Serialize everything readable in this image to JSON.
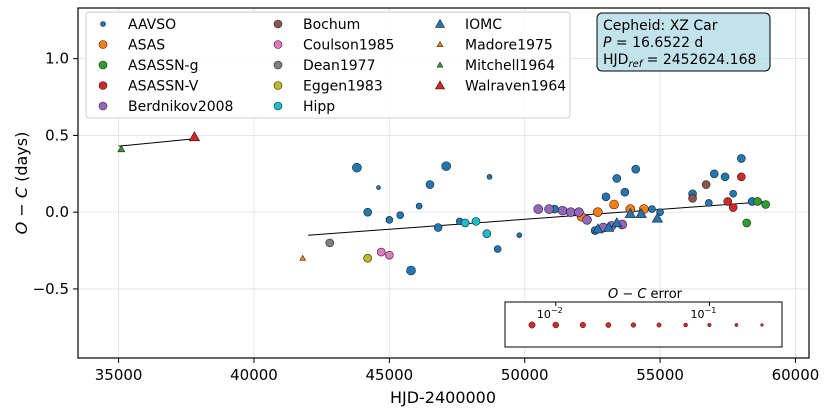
{
  "chart_data": {
    "type": "scatter",
    "xlabel": "HJD-2400000",
    "ylabel_italic": "O − C",
    "ylabel_rest": " (days)",
    "xlim": [
      33500,
      60500
    ],
    "ylim": [
      -0.95,
      1.33
    ],
    "xticks": [
      35000,
      40000,
      45000,
      50000,
      55000,
      60000
    ],
    "yticks": [
      -0.5,
      0.0,
      0.5,
      1.0
    ],
    "ytick_labels": [
      "−0.5",
      "0.0",
      "0.5",
      "1.0"
    ],
    "grid": true,
    "info_box": {
      "line1": "Cepheid: XZ Car",
      "p_label": "P",
      "p_value": " = 16.6522 d",
      "hjd_label": "HJD",
      "hjd_sub": "ref",
      "hjd_value": " = 2452624.168"
    },
    "legend": {
      "columns": [
        [
          {
            "name": "AAVSO",
            "color": "#1f77b4",
            "marker": "circle-small"
          },
          {
            "name": "ASAS",
            "color": "#ff7f0e",
            "marker": "circle"
          },
          {
            "name": "ASASSN-g",
            "color": "#2ca02c",
            "marker": "circle"
          },
          {
            "name": "ASASSN-V",
            "color": "#d62728",
            "marker": "circle"
          },
          {
            "name": "Berdnikov2008",
            "color": "#9467bd",
            "marker": "circle"
          }
        ],
        [
          {
            "name": "Bochum",
            "color": "#8c564b",
            "marker": "circle"
          },
          {
            "name": "Coulson1985",
            "color": "#e377c2",
            "marker": "circle"
          },
          {
            "name": "Dean1977",
            "color": "#7f7f7f",
            "marker": "circle"
          },
          {
            "name": "Eggen1983",
            "color": "#bcbd22",
            "marker": "circle"
          },
          {
            "name": "Hipp",
            "color": "#17becf",
            "marker": "circle"
          }
        ],
        [
          {
            "name": "IOMC",
            "color": "#1f77b4",
            "marker": "triangle"
          },
          {
            "name": "Madore1975",
            "color": "#ff7f0e",
            "marker": "triangle-small"
          },
          {
            "name": "Mitchell1964",
            "color": "#2ca02c",
            "marker": "triangle-small"
          },
          {
            "name": "Walraven1964",
            "color": "#d62728",
            "marker": "triangle"
          }
        ]
      ]
    },
    "error_legend": {
      "title_italic": "O − C",
      "title_rest": " error",
      "tick_base": "10",
      "tick_exps": [
        "−2",
        "−1"
      ],
      "tick_values": [
        0.01,
        0.1
      ],
      "sample_errors": [
        0.007,
        0.01,
        0.015,
        0.022,
        0.032,
        0.047,
        0.07,
        0.1,
        0.15,
        0.22
      ],
      "color": "#d62728"
    },
    "fit_lines": [
      {
        "x": [
          35000,
          37900
        ],
        "y": [
          0.43,
          0.48
        ]
      },
      {
        "x": [
          42000,
          59000
        ],
        "y": [
          -0.15,
          0.07
        ]
      }
    ],
    "series": [
      {
        "name": "AAVSO",
        "color": "#1f77b4",
        "marker": "circle",
        "points": [
          [
            43800,
            0.29,
            4.5
          ],
          [
            44200,
            0.0,
            4
          ],
          [
            44600,
            0.16,
            2
          ],
          [
            45000,
            -0.05,
            3.5
          ],
          [
            45400,
            -0.02,
            3.5
          ],
          [
            45800,
            -0.38,
            4.5
          ],
          [
            46100,
            0.04,
            3
          ],
          [
            46500,
            0.18,
            4
          ],
          [
            46800,
            -0.1,
            4
          ],
          [
            47100,
            0.3,
            4.5
          ],
          [
            47600,
            -0.06,
            3.5
          ],
          [
            48700,
            0.23,
            2.5
          ],
          [
            49000,
            -0.24,
            3.5
          ],
          [
            49800,
            -0.15,
            2.5
          ],
          [
            51100,
            0.02,
            4
          ],
          [
            52600,
            -0.12,
            4
          ],
          [
            53000,
            0.1,
            4
          ],
          [
            53400,
            0.22,
            4
          ],
          [
            53700,
            0.13,
            4
          ],
          [
            54100,
            0.28,
            4
          ],
          [
            54700,
            0.02,
            3.5
          ],
          [
            55000,
            0.0,
            3.5
          ],
          [
            56200,
            0.12,
            4
          ],
          [
            56800,
            0.06,
            3.5
          ],
          [
            57000,
            0.25,
            4
          ],
          [
            57400,
            0.23,
            4
          ],
          [
            57700,
            0.12,
            3.5
          ],
          [
            58000,
            0.35,
            4
          ],
          [
            58400,
            0.07,
            4
          ]
        ]
      },
      {
        "name": "ASAS",
        "color": "#ff7f0e",
        "marker": "circle",
        "points": [
          [
            52100,
            -0.03,
            4.5
          ],
          [
            52700,
            0.0,
            4.5
          ],
          [
            53300,
            0.05,
            4.5
          ],
          [
            53900,
            0.02,
            4.5
          ],
          [
            54400,
            0.02,
            4.5
          ]
        ]
      },
      {
        "name": "ASASSN-g",
        "color": "#2ca02c",
        "marker": "circle",
        "points": [
          [
            58200,
            -0.07,
            4
          ],
          [
            58600,
            0.07,
            4
          ],
          [
            58900,
            0.05,
            4
          ]
        ]
      },
      {
        "name": "ASASSN-V",
        "color": "#d62728",
        "marker": "circle",
        "points": [
          [
            57500,
            0.07,
            4
          ],
          [
            57700,
            0.03,
            4
          ],
          [
            58000,
            0.23,
            4
          ]
        ]
      },
      {
        "name": "Berdnikov2008",
        "color": "#9467bd",
        "marker": "circle",
        "points": [
          [
            50500,
            0.02,
            4.5
          ],
          [
            50900,
            0.02,
            4.5
          ],
          [
            51400,
            0.01,
            4.5
          ],
          [
            51700,
            0.0,
            4.5
          ],
          [
            52000,
            0.0,
            4.5
          ],
          [
            52300,
            -0.05,
            4.5
          ],
          [
            52900,
            -0.1,
            4.5
          ],
          [
            53200,
            -0.09,
            4.5
          ],
          [
            53600,
            -0.08,
            4.5
          ]
        ]
      },
      {
        "name": "Bochum",
        "color": "#8c564b",
        "marker": "circle",
        "points": [
          [
            56200,
            0.09,
            4
          ],
          [
            56700,
            0.18,
            4
          ]
        ]
      },
      {
        "name": "Coulson1985",
        "color": "#e377c2",
        "marker": "circle",
        "points": [
          [
            44700,
            -0.26,
            4
          ],
          [
            45000,
            -0.28,
            4
          ]
        ]
      },
      {
        "name": "Dean1977",
        "color": "#7f7f7f",
        "marker": "circle",
        "points": [
          [
            42800,
            -0.2,
            4
          ]
        ]
      },
      {
        "name": "Eggen1983",
        "color": "#bcbd22",
        "marker": "circle",
        "points": [
          [
            44200,
            -0.3,
            4
          ]
        ]
      },
      {
        "name": "Hipp",
        "color": "#17becf",
        "marker": "circle",
        "points": [
          [
            47800,
            -0.07,
            4
          ],
          [
            48200,
            -0.06,
            4
          ],
          [
            48600,
            -0.14,
            4
          ]
        ]
      },
      {
        "name": "IOMC",
        "color": "#1f77b4",
        "marker": "triangle",
        "points": [
          [
            52700,
            -0.11,
            4.5
          ],
          [
            53100,
            -0.1,
            4.5
          ],
          [
            53400,
            -0.07,
            4.5
          ],
          [
            53900,
            -0.01,
            4.5
          ],
          [
            54300,
            -0.01,
            4.5
          ],
          [
            54900,
            -0.04,
            4.5
          ]
        ]
      },
      {
        "name": "Madore1975",
        "color": "#ff7f0e",
        "marker": "triangle",
        "points": [
          [
            41800,
            -0.3,
            2.5
          ]
        ]
      },
      {
        "name": "Mitchell1964",
        "color": "#2ca02c",
        "marker": "triangle",
        "points": [
          [
            35100,
            0.41,
            3
          ]
        ]
      },
      {
        "name": "Walraven1964",
        "color": "#d62728",
        "marker": "triangle",
        "points": [
          [
            37800,
            0.49,
            4.5
          ]
        ]
      }
    ]
  }
}
